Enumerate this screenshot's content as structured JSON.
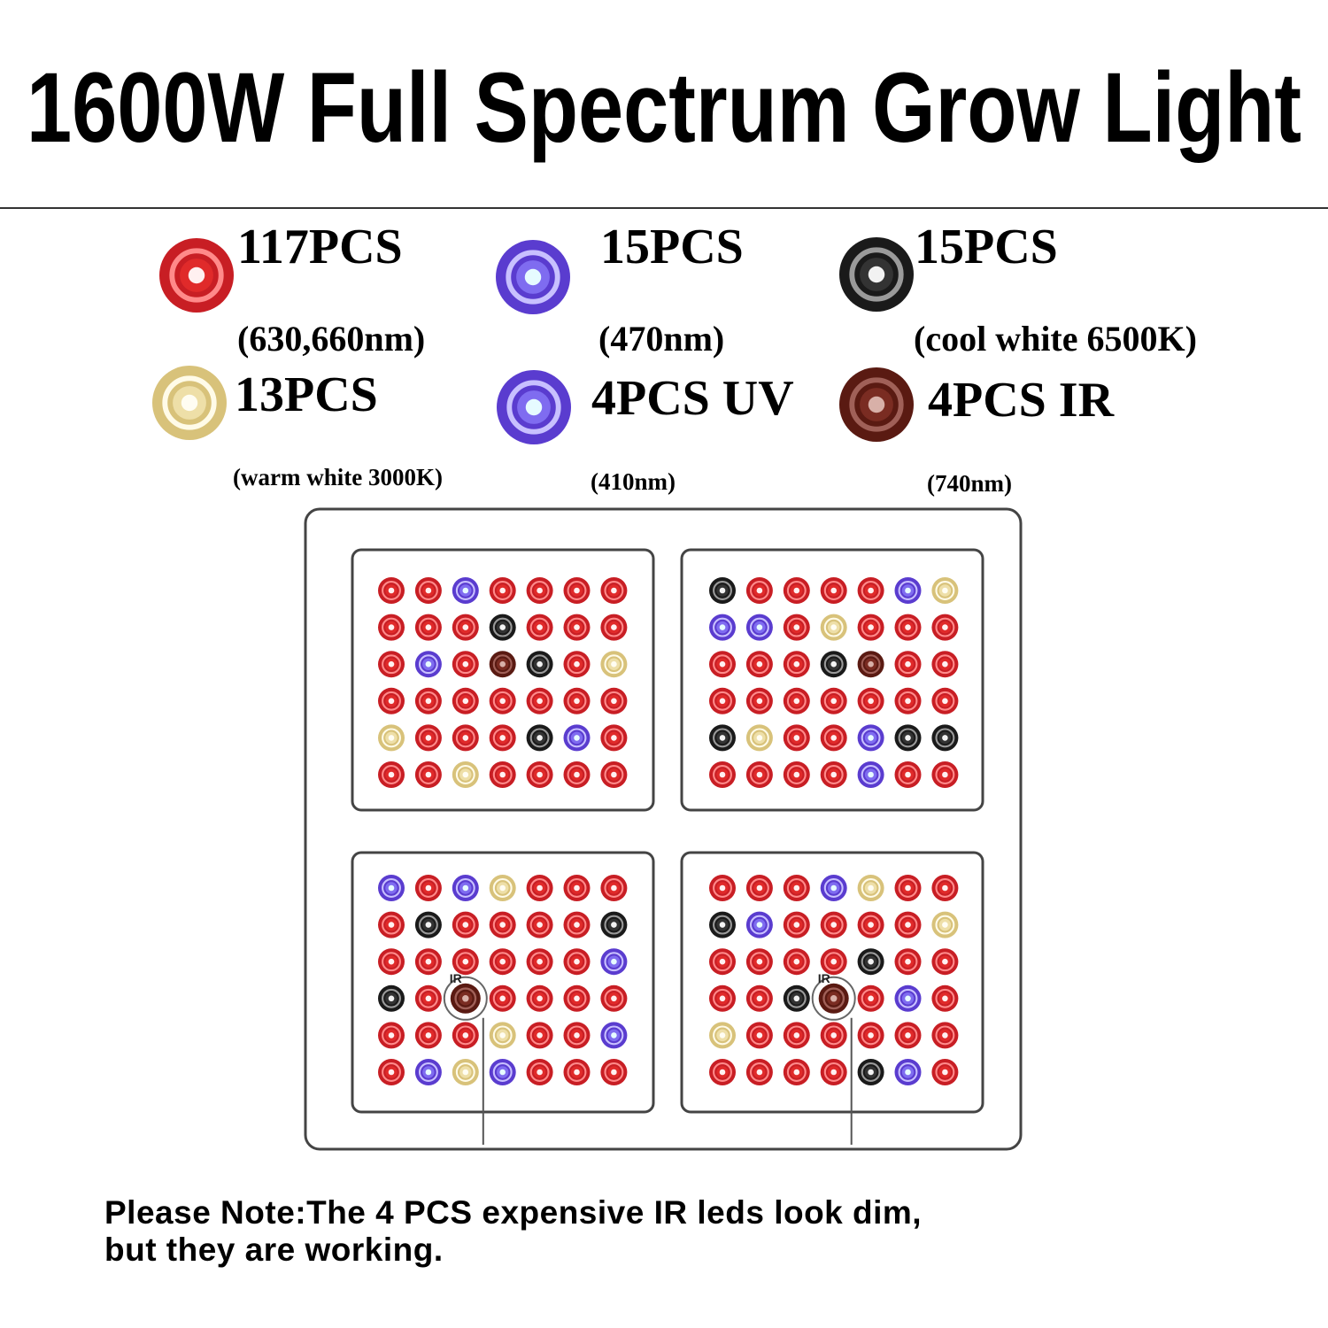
{
  "header": {
    "title": "1600W Full Spectrum Grow Light"
  },
  "legend": [
    {
      "count": "117PCS",
      "spec": "(630,660nm)"
    },
    {
      "count": "15PCS",
      "spec": "(470nm)"
    },
    {
      "count": "15PCS",
      "spec": "(cool white 6500K)"
    },
    {
      "count": "13PCS",
      "spec": "(warm white 3000K)"
    },
    {
      "count": "4PCS UV",
      "spec": "(410nm)"
    },
    {
      "count": "4PCS IR",
      "spec": "(740nm)"
    }
  ],
  "panel": {
    "ir_labels": [
      "IR",
      "IR"
    ]
  },
  "note": {
    "lines": [
      "Please Note:The 4 PCS expensive IR leds look dim,",
      "but they are working."
    ]
  }
}
